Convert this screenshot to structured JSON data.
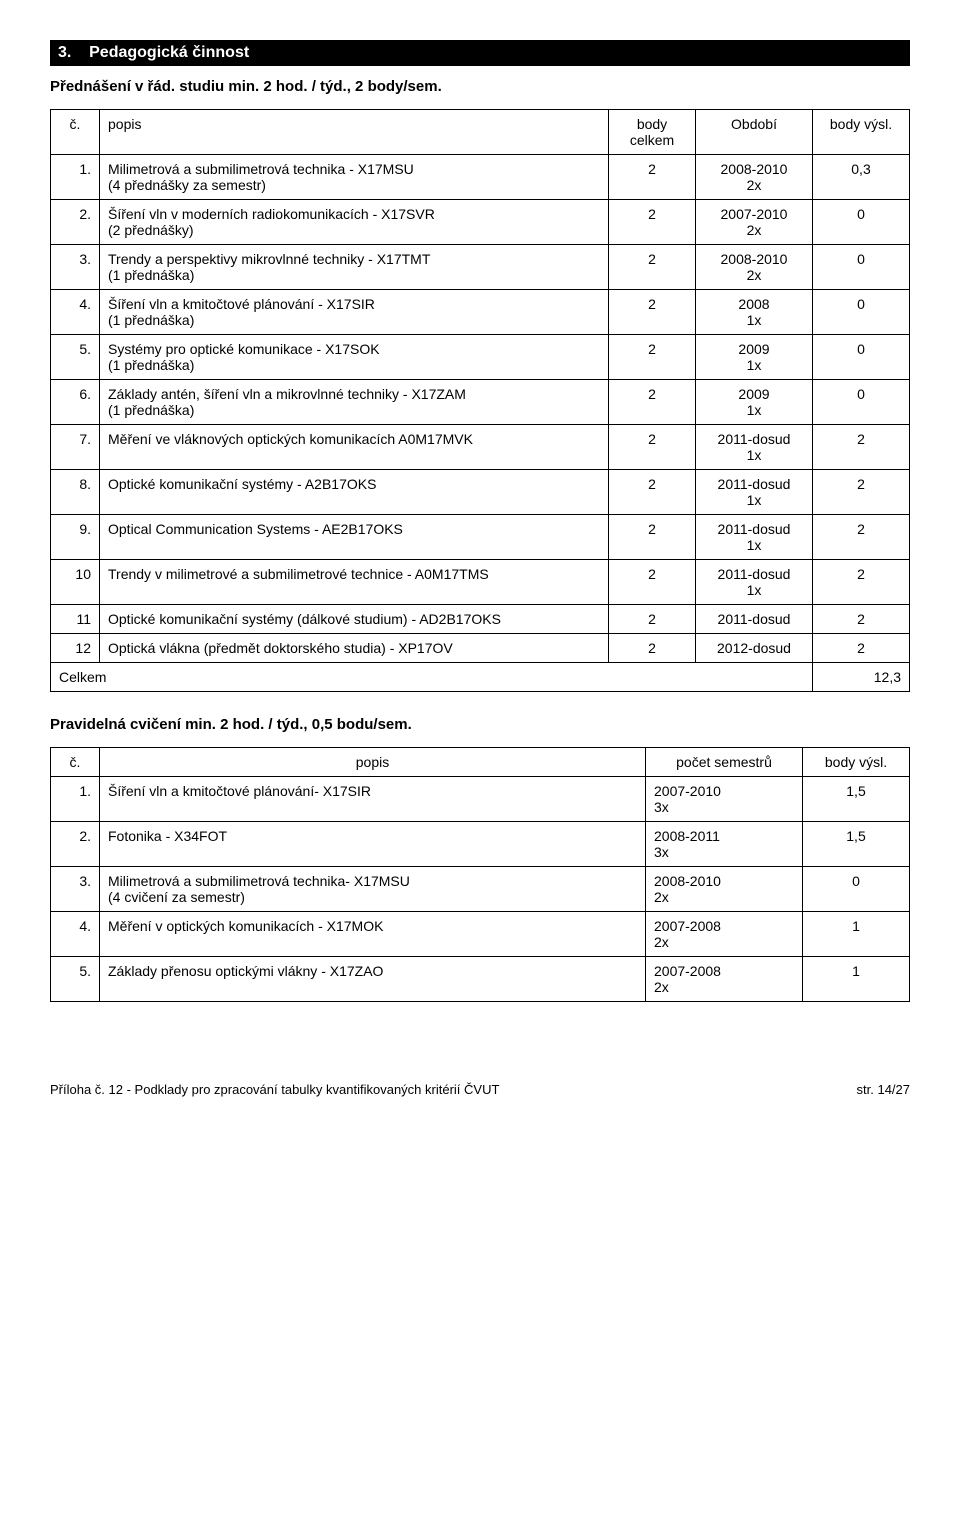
{
  "section": {
    "number": "3.",
    "title": "Pedagogická činnost"
  },
  "subhead1": "Přednášení v řád. studiu min. 2 hod. / týd., 2 body/sem.",
  "table1": {
    "headers": {
      "col1": "č.",
      "col2": "popis",
      "col3": "body\ncelkem",
      "col4": "Období",
      "col5": "body výsl."
    },
    "rows": [
      {
        "n": "1.",
        "desc": "Milimetrová a submilimetrová technika - X17MSU\n(4 přednášky za semestr)",
        "body": "2",
        "obdobi": "2008-2010\n2x",
        "vysl": "0,3"
      },
      {
        "n": "2.",
        "desc": "Šíření vln v moderních radiokomunikacích - X17SVR\n(2 přednášky)",
        "body": "2",
        "obdobi": "2007-2010\n2x",
        "vysl": "0"
      },
      {
        "n": "3.",
        "desc": "Trendy a perspektivy mikrovlnné techniky - X17TMT\n(1 přednáška)",
        "body": "2",
        "obdobi": "2008-2010\n2x",
        "vysl": "0"
      },
      {
        "n": "4.",
        "desc": "Šíření vln a kmitočtové plánování - X17SIR\n(1 přednáška)",
        "body": "2",
        "obdobi": "2008\n1x",
        "vysl": "0"
      },
      {
        "n": "5.",
        "desc": "Systémy pro optické komunikace - X17SOK\n(1 přednáška)",
        "body": "2",
        "obdobi": "2009\n1x",
        "vysl": "0"
      },
      {
        "n": "6.",
        "desc": "Základy antén, šíření vln a mikrovlnné techniky - X17ZAM\n(1 přednáška)",
        "body": "2",
        "obdobi": "2009\n1x",
        "vysl": "0"
      },
      {
        "n": "7.",
        "desc": "Měření ve vláknových optických komunikacích A0M17MVK",
        "body": "2",
        "obdobi": "2011-dosud\n1x",
        "vysl": "2"
      },
      {
        "n": "8.",
        "desc": "Optické komunikační systémy - A2B17OKS",
        "body": "2",
        "obdobi": "2011-dosud\n1x",
        "vysl": "2"
      },
      {
        "n": "9.",
        "desc": "Optical Communication Systems - AE2B17OKS",
        "body": "2",
        "obdobi": "2011-dosud\n1x",
        "vysl": "2"
      },
      {
        "n": "10",
        "desc": "Trendy v milimetrové a submilimetrové technice - A0M17TMS",
        "body": "2",
        "obdobi": "2011-dosud\n1x",
        "vysl": "2"
      },
      {
        "n": "11",
        "desc": "Optické komunikační systémy (dálkové studium) - AD2B17OKS",
        "body": "2",
        "obdobi": "2011-dosud",
        "vysl": "2"
      },
      {
        "n": "12",
        "desc": "Optická vlákna (předmět doktorského studia) - XP17OV",
        "body": "2",
        "obdobi": "2012-dosud",
        "vysl": "2"
      }
    ],
    "total": {
      "label": "Celkem",
      "value": "12,3"
    }
  },
  "subhead2": "Pravidelná cvičení min. 2 hod. / týd., 0,5 bodu/sem.",
  "table2": {
    "headers": {
      "col1": "č.",
      "col2": "popis",
      "col3": "počet semestrů",
      "col4": "body výsl."
    },
    "rows": [
      {
        "n": "1.",
        "desc": "Šíření vln a kmitočtové plánování- X17SIR",
        "sem": "2007-2010\n3x",
        "vysl": "1,5"
      },
      {
        "n": "2.",
        "desc": "Fotonika - X34FOT",
        "sem": "2008-2011\n3x",
        "vysl": "1,5"
      },
      {
        "n": "3.",
        "desc": "Milimetrová a submilimetrová technika- X17MSU\n(4 cvičení za semestr)",
        "sem": "2008-2010\n2x",
        "vysl": "0"
      },
      {
        "n": "4.",
        "desc": "Měření v optických komunikacích - X17MOK",
        "sem": "2007-2008\n2x",
        "vysl": "1"
      },
      {
        "n": "5.",
        "desc": "Základy přenosu optickými vlákny - X17ZAO",
        "sem": "2007-2008\n2x",
        "vysl": "1"
      }
    ]
  },
  "footer": {
    "left": "Příloha č. 12 - Podklady pro zpracování tabulky kvantifikovaných kritérií ČVUT",
    "right": "str. 14/27"
  }
}
